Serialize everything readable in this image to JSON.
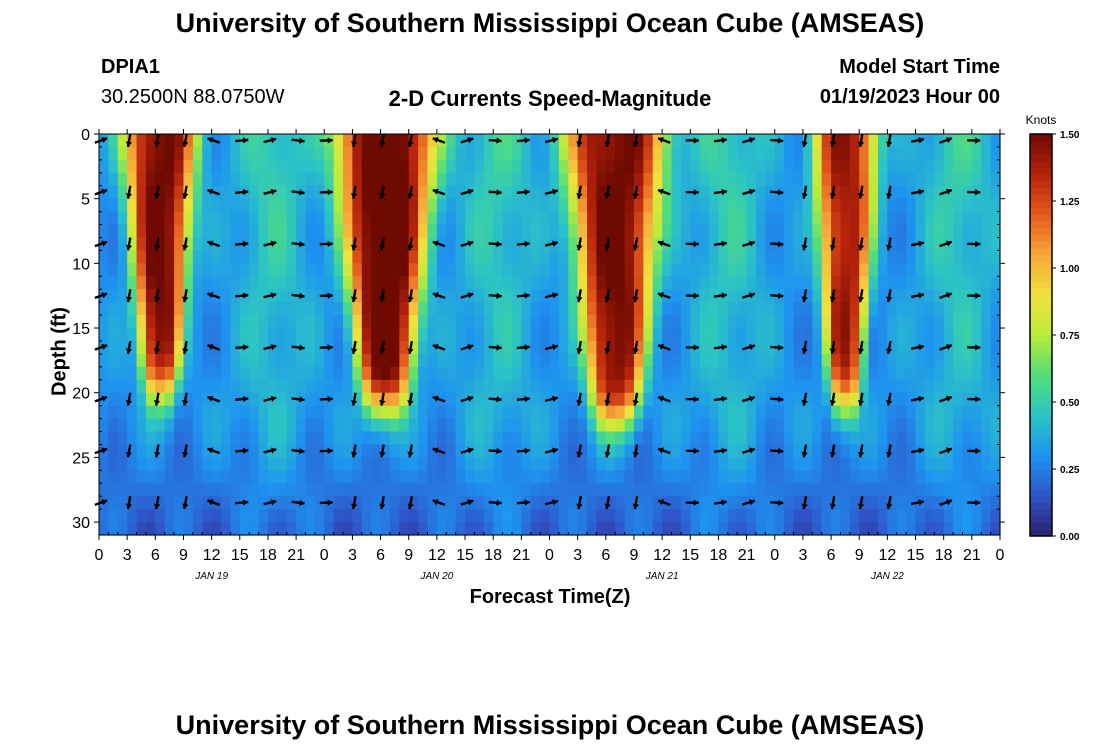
{
  "header": {
    "title": "University of Southern Mississippi Ocean Cube (AMSEAS)",
    "station_id": "DPIA1",
    "coords": "30.2500N  88.0750W",
    "subtitle": "2-D Currents Speed-Magnitude",
    "model_start_label": "Model Start Time",
    "model_start_value": "01/19/2023 Hour 00"
  },
  "footer": {
    "title": "University of Southern Mississippi Ocean Cube (AMSEAS)"
  },
  "colors": {
    "stops": [
      "#2b1f6e",
      "#2f55c9",
      "#1e93f0",
      "#2bc4c5",
      "#52de7a",
      "#b9eb3a",
      "#f0e23d",
      "#f7a73a",
      "#e55a1c",
      "#b5230c",
      "#6e0a00"
    ]
  },
  "chart_data": {
    "type": "heatmap",
    "title": "2-D Currents Speed-Magnitude",
    "xlabel": "Forecast Time(Z)",
    "ylabel": "Depth (ft)",
    "xlim": [
      0,
      96
    ],
    "ylim": [
      0,
      31
    ],
    "x_ticks": [
      0,
      3,
      6,
      9,
      12,
      15,
      18,
      21,
      24,
      27,
      30,
      33,
      36,
      39,
      42,
      45,
      48,
      51,
      54,
      57,
      60,
      63,
      66,
      69,
      72,
      75,
      78,
      81,
      84,
      87,
      90,
      93,
      96
    ],
    "x_tick_labels": [
      "0",
      "3",
      "6",
      "9",
      "12",
      "15",
      "18",
      "21",
      "0",
      "3",
      "6",
      "9",
      "12",
      "15",
      "18",
      "21",
      "0",
      "3",
      "6",
      "9",
      "12",
      "15",
      "18",
      "21",
      "0",
      "3",
      "6",
      "9",
      "12",
      "15",
      "18",
      "21",
      "0"
    ],
    "day_labels": [
      {
        "x": 12,
        "label": "JAN 19"
      },
      {
        "x": 36,
        "label": "JAN 20"
      },
      {
        "x": 60,
        "label": "JAN 21"
      },
      {
        "x": 84,
        "label": "JAN 22"
      }
    ],
    "y_ticks": [
      0,
      5,
      10,
      15,
      20,
      25,
      30
    ],
    "y_tick_labels": [
      "0",
      "5",
      "10",
      "15",
      "20",
      "25",
      "30"
    ],
    "colorbar": {
      "unit": "Knots",
      "range": [
        0,
        1.5
      ],
      "ticks": [
        0,
        0.25,
        0.5,
        0.75,
        1.0,
        1.25,
        1.5
      ],
      "tick_labels": [
        "0.00",
        "0.25",
        "0.50",
        "0.75",
        "1.00",
        "1.25",
        "1.50"
      ]
    },
    "vector_depths_ft": [
      0.5,
      4.5,
      8.5,
      12.5,
      16.5,
      20.5,
      24.5,
      28.5
    ],
    "vector_times_h": [
      0,
      3,
      6,
      9,
      12,
      15,
      18,
      21,
      24,
      27,
      30,
      33,
      36,
      39,
      42,
      45,
      48,
      51,
      54,
      57,
      60,
      63,
      66,
      69,
      72,
      75,
      78,
      81,
      84,
      87,
      90,
      93,
      96
    ],
    "ebb_events": [
      {
        "center_h": 6.5,
        "halfwidth_h": 4.0,
        "peak_kn": 1.5,
        "bottom_ft": 20
      },
      {
        "center_h": 30.5,
        "halfwidth_h": 5.5,
        "peak_kn": 1.6,
        "bottom_ft": 21
      },
      {
        "center_h": 55.0,
        "halfwidth_h": 5.5,
        "peak_kn": 1.5,
        "bottom_ft": 22
      },
      {
        "center_h": 79.5,
        "halfwidth_h": 3.5,
        "peak_kn": 1.4,
        "bottom_ft": 21
      }
    ],
    "background_speed_kn": 0.3
  }
}
